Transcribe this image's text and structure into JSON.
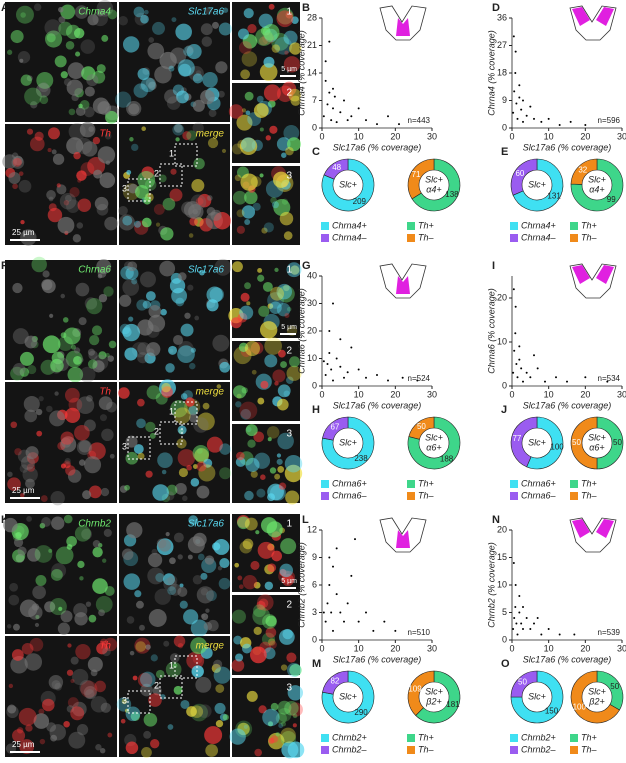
{
  "image_panels": [
    {
      "panel": "A",
      "channels": [
        {
          "label": "Chrna4",
          "color": "#6ee86e"
        },
        {
          "label": "Slc17a6",
          "color": "#5ad8f0"
        },
        {
          "label": "Th",
          "color": "#ff3a3a"
        },
        {
          "label": "merge",
          "color": "#f0e040"
        }
      ],
      "scale_bar": "25 µm",
      "inset_scale_bar": "5 µm",
      "insets": [
        "1",
        "2",
        "3"
      ],
      "boxes": [
        "1",
        "2",
        "3"
      ]
    },
    {
      "panel": "F",
      "channels": [
        {
          "label": "Chrna6",
          "color": "#6ee86e"
        },
        {
          "label": "Slc17a6",
          "color": "#5ad8f0"
        },
        {
          "label": "Th",
          "color": "#ff3a3a"
        },
        {
          "label": "merge",
          "color": "#f0e040"
        }
      ],
      "scale_bar": "25 µm",
      "inset_scale_bar": "5 µm",
      "insets": [
        "1",
        "2",
        "3"
      ],
      "boxes": [
        "1",
        "2",
        "3"
      ]
    },
    {
      "panel": "K",
      "channels": [
        {
          "label": "Chrnb2",
          "color": "#6ee86e"
        },
        {
          "label": "Slc17a6",
          "color": "#5ad8f0"
        },
        {
          "label": "Th",
          "color": "#ff3a3a"
        },
        {
          "label": "merge",
          "color": "#f0e040"
        }
      ],
      "scale_bar": "25 µm",
      "inset_scale_bar": "5 µm",
      "insets": [
        "1",
        "2",
        "3"
      ],
      "boxes": [
        "1",
        "2",
        "3"
      ]
    }
  ],
  "chart_data": [
    {
      "type": "scatter",
      "panel": "B",
      "x_label": "Slc17a6 (% coverage)",
      "y_label": "Chrna4 (% coverage)",
      "note": "n=443",
      "color": "#000000",
      "xlim": [
        0,
        30
      ],
      "xticks": [
        0,
        10,
        20,
        30
      ],
      "ylim": [
        0,
        28
      ],
      "yticks": [
        0,
        7,
        14,
        21,
        28
      ],
      "x": [
        0.5,
        1,
        1.5,
        2,
        2.5,
        3,
        3.5,
        4,
        5,
        6,
        7,
        8,
        10,
        12,
        15,
        18,
        21,
        1,
        2,
        3
      ],
      "values": [
        3,
        12,
        6,
        9,
        2,
        5,
        8,
        1.5,
        4,
        7,
        2,
        3,
        5,
        2,
        1,
        3,
        1,
        17,
        22,
        10
      ]
    },
    {
      "type": "donut",
      "panel": "C",
      "center_label": [
        "Slc+"
      ],
      "categories": [
        "Chrna4+",
        "Chrna4–"
      ],
      "values": [
        209,
        48
      ],
      "colors": [
        "#3fe0f2",
        "#9a5cf0"
      ]
    },
    {
      "type": "donut",
      "center_label": [
        "Slc+",
        "α4+"
      ],
      "categories": [
        "Th+",
        "Th–"
      ],
      "values": [
        138,
        71
      ],
      "colors": [
        "#3ed68a",
        "#f08a1a"
      ]
    },
    {
      "type": "scatter",
      "panel": "D",
      "x_label": "Slc17a6 (% coverage)",
      "y_label": "Chrna4 (% coverage)",
      "note": "n=596",
      "color": "#000000",
      "xlim": [
        0,
        30
      ],
      "xticks": [
        0,
        10,
        20,
        30
      ],
      "ylim": [
        0,
        36
      ],
      "yticks": [
        0,
        9,
        18,
        27,
        36
      ],
      "x": [
        0.3,
        0.6,
        0.9,
        1.2,
        1.5,
        2,
        2.5,
        3,
        4,
        5,
        6,
        8,
        10,
        13,
        16,
        20,
        1,
        0.5,
        2,
        3
      ],
      "values": [
        5,
        12,
        18,
        8,
        3,
        10,
        6,
        2,
        4,
        7,
        3,
        2,
        3,
        1,
        2,
        1,
        25,
        30,
        14,
        9
      ]
    },
    {
      "type": "donut",
      "panel": "E",
      "center_label": [
        "Slc+"
      ],
      "categories": [
        "Chrna4+",
        "Chrna4–"
      ],
      "values": [
        131,
        60
      ],
      "colors": [
        "#3fe0f2",
        "#9a5cf0"
      ]
    },
    {
      "type": "donut",
      "center_label": [
        "Slc+",
        "α4+"
      ],
      "categories": [
        "Th+",
        "Th–"
      ],
      "values": [
        99,
        32
      ],
      "colors": [
        "#3ed68a",
        "#f08a1a"
      ]
    },
    {
      "type": "scatter",
      "panel": "G",
      "x_label": "Slc17a6 (% coverage)",
      "y_label": "Chrna6 (% coverage)",
      "note": "n=524",
      "color": "#000000",
      "xlim": [
        0,
        30
      ],
      "xticks": [
        0,
        10,
        20,
        30
      ],
      "ylim": [
        0,
        40
      ],
      "yticks": [
        0,
        10,
        20,
        30,
        40
      ],
      "x": [
        1,
        1.5,
        2,
        2.5,
        3,
        4,
        5,
        6,
        7,
        8,
        10,
        12,
        15,
        18,
        22,
        26,
        2,
        3,
        5,
        0.5
      ],
      "values": [
        4,
        8,
        12,
        6,
        2,
        10,
        7,
        3,
        5,
        14,
        6,
        3,
        4,
        2,
        3,
        2,
        20,
        30,
        17,
        9
      ]
    },
    {
      "type": "donut",
      "panel": "H",
      "center_label": [
        "Slc+"
      ],
      "categories": [
        "Chrna6+",
        "Chrna6–"
      ],
      "values": [
        238,
        67
      ],
      "colors": [
        "#3fe0f2",
        "#9a5cf0"
      ]
    },
    {
      "type": "donut",
      "center_label": [
        "Slc+",
        "α6+"
      ],
      "categories": [
        "Th+",
        "Th–"
      ],
      "values": [
        188,
        50
      ],
      "colors": [
        "#3ed68a",
        "#f08a1a"
      ]
    },
    {
      "type": "scatter",
      "panel": "I",
      "x_label": "Slc17a6 (% coverage)",
      "y_label": "Chrna6 (% coverage)",
      "note": "n=534",
      "color": "#000000",
      "xlim": [
        0,
        30
      ],
      "xticks": [
        0,
        10,
        20,
        30
      ],
      "ylim": [
        0,
        25
      ],
      "yticks": [
        0,
        10,
        20
      ],
      "x": [
        0.3,
        0.6,
        0.9,
        1.2,
        1.5,
        2,
        2.5,
        3,
        4,
        5,
        7,
        9,
        12,
        15,
        20,
        26,
        1,
        0.5,
        2,
        6
      ],
      "values": [
        3,
        8,
        12,
        5,
        2,
        6,
        4,
        1,
        3,
        2,
        4,
        1,
        2,
        1,
        2,
        1,
        18,
        22,
        9,
        7
      ]
    },
    {
      "type": "donut",
      "panel": "J",
      "center_label": [
        "Slc+"
      ],
      "categories": [
        "Chrna6+",
        "Chrna6–"
      ],
      "values": [
        100,
        77
      ],
      "colors": [
        "#3fe0f2",
        "#9a5cf0"
      ]
    },
    {
      "type": "donut",
      "center_label": [
        "Slc+",
        "α6+"
      ],
      "categories": [
        "Th+",
        "Th–"
      ],
      "values": [
        50,
        50
      ],
      "colors": [
        "#3ed68a",
        "#f08a1a"
      ]
    },
    {
      "type": "scatter",
      "panel": "L",
      "x_label": "Slc17a6 (% coverage)",
      "y_label": "Chrnb2 (% coverage)",
      "note": "n=510",
      "color": "#000000",
      "xlim": [
        0,
        30
      ],
      "xticks": [
        0,
        10,
        20,
        30
      ],
      "ylim": [
        0,
        12
      ],
      "yticks": [
        0,
        3,
        6,
        9,
        12
      ],
      "x": [
        1,
        1.5,
        2,
        2.5,
        3,
        4,
        5,
        6,
        7,
        8,
        10,
        12,
        14,
        17,
        20,
        2,
        3,
        4,
        0.5,
        9
      ],
      "values": [
        2,
        4,
        6,
        3,
        1,
        5,
        3,
        2,
        4,
        7,
        2,
        3,
        1,
        2,
        1,
        9,
        8,
        10,
        3,
        11
      ]
    },
    {
      "type": "donut",
      "panel": "M",
      "center_label": [
        "Slc+"
      ],
      "categories": [
        "Chrnb2+",
        "Chrnb2–"
      ],
      "values": [
        290,
        82
      ],
      "colors": [
        "#3fe0f2",
        "#9a5cf0"
      ]
    },
    {
      "type": "donut",
      "center_label": [
        "Slc+",
        "β2+"
      ],
      "categories": [
        "Th+",
        "Th–"
      ],
      "values": [
        181,
        109
      ],
      "colors": [
        "#3ed68a",
        "#f08a1a"
      ]
    },
    {
      "type": "scatter",
      "panel": "N",
      "x_label": "Slc17a6 (% coverage)",
      "y_label": "Chrnb2 (% coverage)",
      "note": "n=539",
      "color": "#000000",
      "xlim": [
        0,
        30
      ],
      "xticks": [
        0,
        10,
        20,
        30
      ],
      "ylim": [
        0,
        20
      ],
      "yticks": [
        0,
        5,
        10,
        15,
        20
      ],
      "x": [
        0.3,
        0.6,
        0.9,
        1.2,
        1.5,
        2,
        2.5,
        3,
        4,
        5,
        6,
        8,
        10,
        13,
        17,
        1,
        0.5,
        2,
        3,
        7
      ],
      "values": [
        2,
        4,
        6,
        3,
        1,
        5,
        3,
        2,
        4,
        2,
        3,
        1,
        2,
        1,
        1,
        10,
        14,
        8,
        6,
        4
      ]
    },
    {
      "type": "donut",
      "panel": "O",
      "center_label": [
        "Slc+"
      ],
      "categories": [
        "Chrnb2+",
        "Chrnb2–"
      ],
      "values": [
        150,
        50
      ],
      "colors": [
        "#3fe0f2",
        "#9a5cf0"
      ]
    },
    {
      "type": "donut",
      "center_label": [
        "Slc+",
        "β2+"
      ],
      "categories": [
        "Th+",
        "Th–"
      ],
      "values": [
        50,
        100
      ],
      "colors": [
        "#3ed68a",
        "#f08a1a"
      ]
    }
  ]
}
